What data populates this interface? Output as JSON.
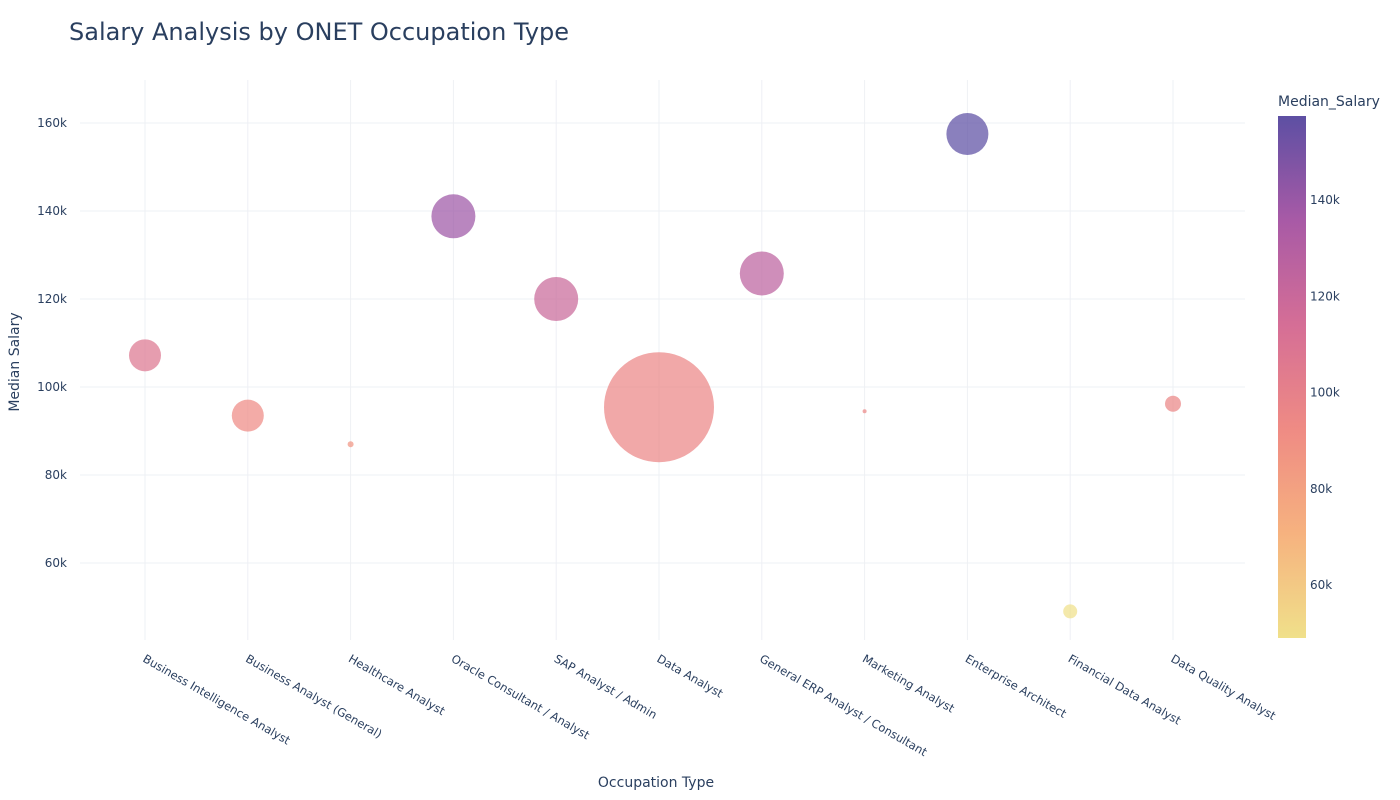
{
  "chart_data": {
    "type": "scatter",
    "title": "Salary Analysis by ONET Occupation Type",
    "xlabel": "Occupation Type",
    "ylabel": "Median Salary",
    "ylim": [
      40000,
      170000
    ],
    "yticks": [
      60000,
      80000,
      100000,
      120000,
      140000,
      160000
    ],
    "ytick_labels": [
      "60k",
      "80k",
      "100k",
      "120k",
      "140k",
      "160k"
    ],
    "grid": true,
    "categories": [
      "Business Intelligence Analyst",
      "Business Analyst (General)",
      "Healthcare Analyst",
      "Oracle Consultant / Analyst",
      "SAP Analyst / Admin",
      "Data Analyst",
      "General ERP Analyst / Consultant",
      "Marketing Analyst",
      "Enterprise Architect",
      "Financial Data Analyst",
      "Data Quality Analyst"
    ],
    "values": [
      107200,
      93500,
      87000,
      138800,
      120000,
      95400,
      125800,
      94500,
      157500,
      49000,
      96200
    ],
    "size_values": [
      16,
      16,
      3,
      22,
      22,
      55,
      22,
      2,
      21,
      7,
      8
    ],
    "colorbar": {
      "title": "Median_Salary",
      "min": 49000,
      "max": 157500,
      "ticks": [
        60000,
        80000,
        100000,
        120000,
        140000
      ],
      "tick_labels": [
        "60k",
        "80k",
        "100k",
        "120k",
        "140k"
      ],
      "colorscale": [
        "#f0e08a",
        "#f6b27f",
        "#ef8b84",
        "#d56e96",
        "#a85aa6",
        "#5d4fa3"
      ]
    }
  }
}
